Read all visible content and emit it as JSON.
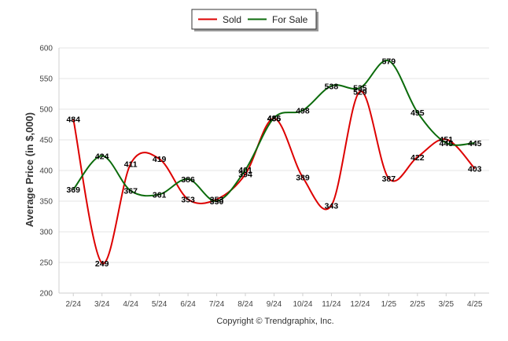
{
  "chart_data": {
    "type": "line",
    "categories": [
      "2/24",
      "3/24",
      "4/24",
      "5/24",
      "6/24",
      "7/24",
      "8/24",
      "9/24",
      "10/24",
      "11/24",
      "12/24",
      "1/25",
      "2/25",
      "3/25",
      "4/25"
    ],
    "series": [
      {
        "name": "Sold",
        "color": "#dd0000",
        "values": [
          484,
          249,
          411,
          419,
          353,
          353,
          394,
          485,
          389,
          343,
          529,
          387,
          422,
          451,
          403
        ]
      },
      {
        "name": "For Sale",
        "color": "#0b6b0b",
        "values": [
          369,
          424,
          367,
          361,
          386,
          350,
          401,
          486,
          498,
          538,
          535,
          579,
          495,
          445,
          445
        ]
      }
    ],
    "ylabel": "Average Price (in $,000)",
    "ylim": [
      200,
      600
    ],
    "yticks": [
      200,
      250,
      300,
      350,
      400,
      450,
      500,
      550,
      600
    ],
    "grid": true,
    "legend_position": "top-center",
    "credit": "Copyright © Trendgraphix, Inc."
  }
}
